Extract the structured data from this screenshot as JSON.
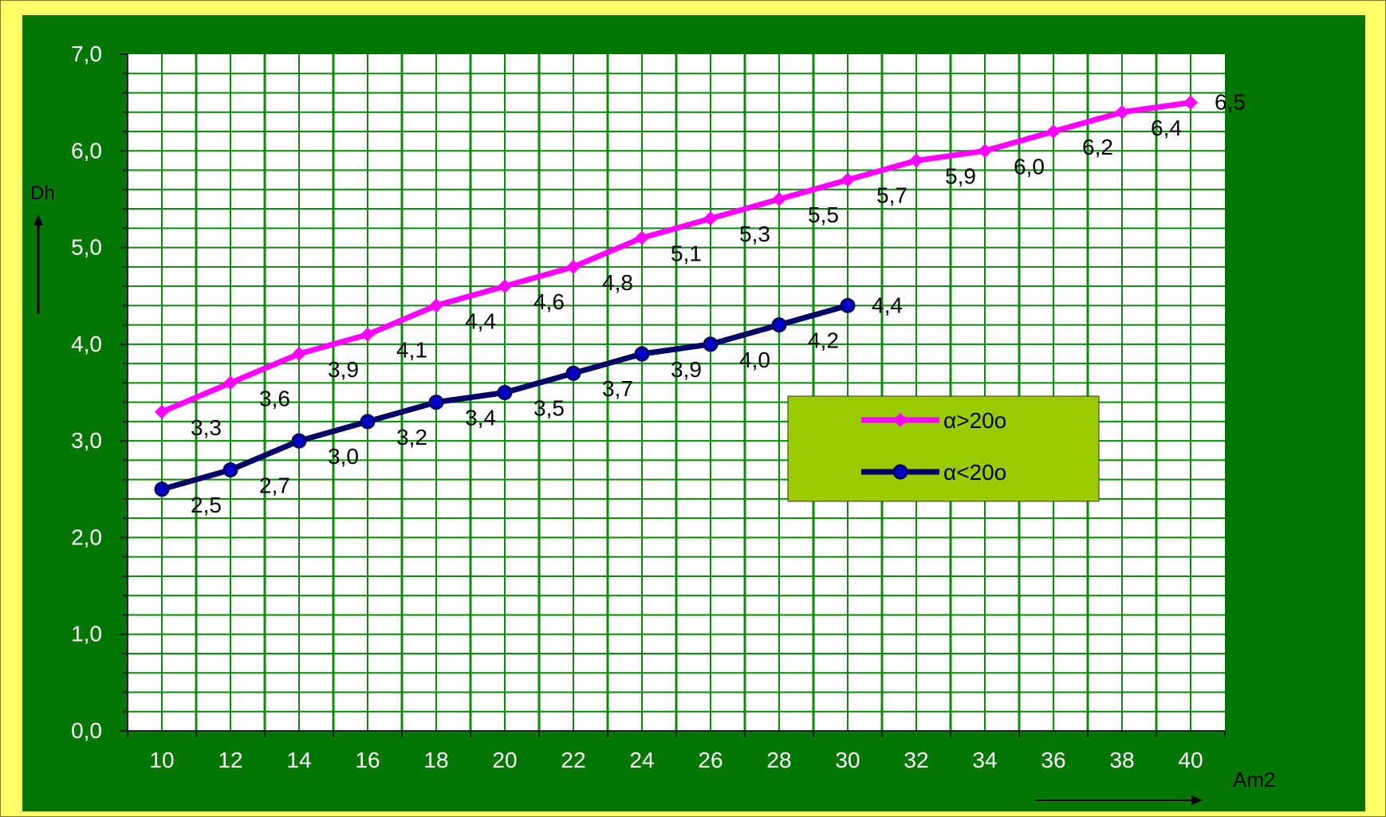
{
  "chart_data": {
    "type": "line",
    "title": "",
    "xlabel": "Am2",
    "ylabel": "Dh",
    "x": [
      10,
      12,
      14,
      16,
      18,
      20,
      22,
      24,
      26,
      28,
      30,
      32,
      34,
      36,
      38,
      40
    ],
    "x_tick_labels": [
      "10",
      "12",
      "14",
      "16",
      "18",
      "20",
      "22",
      "24",
      "26",
      "28",
      "30",
      "32",
      "34",
      "36",
      "38",
      "40"
    ],
    "y_tick_labels": [
      "0,0",
      "1,0",
      "2,0",
      "3,0",
      "4,0",
      "5,0",
      "6,0",
      "7,0"
    ],
    "ylim": [
      0,
      7
    ],
    "grid": true,
    "legend_position": "center-right",
    "series": [
      {
        "name": "α>20o",
        "color": "#ff00ff",
        "marker": "diamond",
        "x": [
          10,
          12,
          14,
          16,
          18,
          20,
          22,
          24,
          26,
          28,
          30,
          32,
          34,
          36,
          38,
          40
        ],
        "values": [
          3.3,
          3.6,
          3.9,
          4.1,
          4.4,
          4.6,
          4.8,
          5.1,
          5.3,
          5.5,
          5.7,
          5.9,
          6.0,
          6.2,
          6.4,
          6.5
        ],
        "labels": [
          "3,3",
          "3,6",
          "3,9",
          "4,1",
          "4,4",
          "4,6",
          "4,8",
          "5,1",
          "5,3",
          "5,5",
          "5,7",
          "5,9",
          "6,0",
          "6,2",
          "6,4",
          "6,5"
        ]
      },
      {
        "name": "α<20o",
        "color": "#000066",
        "marker": "circle",
        "x": [
          10,
          12,
          14,
          16,
          18,
          20,
          22,
          24,
          26,
          28,
          30
        ],
        "values": [
          2.5,
          2.7,
          3.0,
          3.2,
          3.4,
          3.5,
          3.7,
          3.9,
          4.0,
          4.2,
          4.4
        ],
        "labels": [
          "2,5",
          "2,7",
          "3,0",
          "3,2",
          "3,4",
          "3,5",
          "3,7",
          "3,9",
          "4,0",
          "4,2",
          "4,4"
        ]
      }
    ]
  },
  "colors": {
    "frame": "#ffff66",
    "panel": "#037603",
    "plot_area": "#ffffff",
    "grid_line": "#0a8a0a",
    "legend_bg": "#99cc00"
  }
}
